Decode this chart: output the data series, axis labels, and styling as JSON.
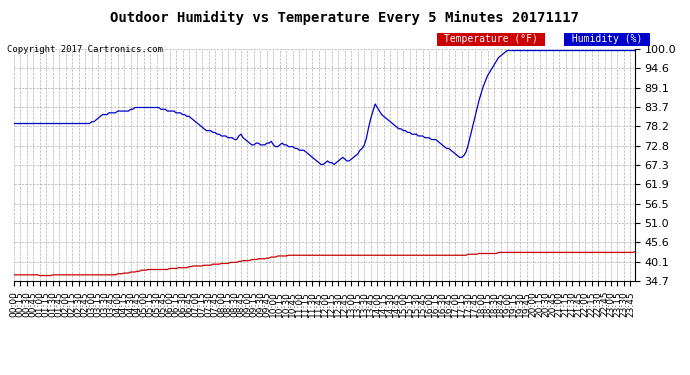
{
  "title": "Outdoor Humidity vs Temperature Every 5 Minutes 20171117",
  "copyright": "Copyright 2017 Cartronics.com",
  "background_color": "#ffffff",
  "plot_bg_color": "#ffffff",
  "grid_color": "#b0b0b0",
  "temp_color": "#cc0000",
  "humidity_color": "#0000cc",
  "temp_label": "Temperature (°F)",
  "humidity_label": "Humidity (%)",
  "temp_label_bg": "#cc0000",
  "humidity_label_bg": "#0000cc",
  "ylim": [
    34.7,
    100.0
  ],
  "yticks": [
    34.7,
    40.1,
    45.6,
    51.0,
    56.5,
    61.9,
    67.3,
    72.8,
    78.2,
    83.7,
    89.1,
    94.6,
    100.0
  ],
  "humidity": [
    79.0,
    79.0,
    79.0,
    79.0,
    79.0,
    79.0,
    79.0,
    79.0,
    79.0,
    79.0,
    79.0,
    79.0,
    79.0,
    79.0,
    79.0,
    79.0,
    79.0,
    79.0,
    79.0,
    79.0,
    79.0,
    79.0,
    79.0,
    79.0,
    79.0,
    79.0,
    79.0,
    79.0,
    79.0,
    79.0,
    79.0,
    79.0,
    79.0,
    79.0,
    79.0,
    79.0,
    79.5,
    79.5,
    80.0,
    80.5,
    81.0,
    81.5,
    81.5,
    81.5,
    82.0,
    82.0,
    82.0,
    82.0,
    82.5,
    82.5,
    82.5,
    82.5,
    82.5,
    82.5,
    83.0,
    83.0,
    83.5,
    83.5,
    83.5,
    83.5,
    83.5,
    83.5,
    83.5,
    83.5,
    83.5,
    83.5,
    83.5,
    83.5,
    83.0,
    83.0,
    83.0,
    82.5,
    82.5,
    82.5,
    82.5,
    82.0,
    82.0,
    82.0,
    81.5,
    81.5,
    81.0,
    81.0,
    80.5,
    80.0,
    79.5,
    79.0,
    78.5,
    78.0,
    77.5,
    77.0,
    77.0,
    77.0,
    76.5,
    76.5,
    76.0,
    76.0,
    75.5,
    75.5,
    75.5,
    75.0,
    75.0,
    75.0,
    74.5,
    74.5,
    75.5,
    76.0,
    75.0,
    74.5,
    74.0,
    73.5,
    73.0,
    73.0,
    73.5,
    73.5,
    73.0,
    73.0,
    73.0,
    73.5,
    73.5,
    74.0,
    73.0,
    72.5,
    72.5,
    73.0,
    73.5,
    73.0,
    73.0,
    72.5,
    72.5,
    72.5,
    72.0,
    72.0,
    71.5,
    71.5,
    71.5,
    71.0,
    70.5,
    70.0,
    69.5,
    69.0,
    68.5,
    68.0,
    67.5,
    67.5,
    68.0,
    68.5,
    68.0,
    68.0,
    67.5,
    68.0,
    68.5,
    69.0,
    69.5,
    69.0,
    68.5,
    68.5,
    69.0,
    69.5,
    70.0,
    70.5,
    71.5,
    72.0,
    73.0,
    75.0,
    78.0,
    80.5,
    82.5,
    84.5,
    83.5,
    82.5,
    81.5,
    81.0,
    80.5,
    80.0,
    79.5,
    79.0,
    78.5,
    78.0,
    77.5,
    77.5,
    77.0,
    77.0,
    76.5,
    76.5,
    76.0,
    76.0,
    76.0,
    75.5,
    75.5,
    75.5,
    75.0,
    75.0,
    75.0,
    74.5,
    74.5,
    74.5,
    74.0,
    73.5,
    73.0,
    72.5,
    72.0,
    72.0,
    71.5,
    71.0,
    70.5,
    70.0,
    69.5,
    69.5,
    70.0,
    71.0,
    73.0,
    75.5,
    78.0,
    80.5,
    83.0,
    85.5,
    87.5,
    89.5,
    91.0,
    92.5,
    93.5,
    94.5,
    95.5,
    96.5,
    97.5,
    98.0,
    98.5,
    99.0,
    99.5,
    99.5,
    99.5,
    99.5,
    99.5,
    99.5,
    99.5,
    99.5,
    99.5,
    99.5,
    99.5,
    99.5,
    99.5,
    99.5,
    99.5,
    99.5,
    99.5,
    99.5,
    99.5,
    99.5,
    99.5,
    99.5,
    99.5,
    99.5,
    99.5,
    99.5,
    99.5,
    99.5,
    99.5,
    99.5,
    99.5,
    99.5,
    99.5,
    99.5,
    99.5,
    99.5,
    99.5,
    99.5,
    99.5,
    99.5,
    99.5,
    99.5,
    99.5,
    99.5,
    99.5,
    99.5,
    99.5,
    99.5,
    99.5,
    99.5,
    99.5,
    99.5,
    99.5,
    99.5,
    99.5,
    99.5,
    99.5,
    99.5,
    99.5,
    99.5
  ],
  "temperature": [
    36.5,
    36.5,
    36.5,
    36.5,
    36.5,
    36.5,
    36.5,
    36.5,
    36.5,
    36.5,
    36.5,
    36.5,
    36.3,
    36.3,
    36.3,
    36.3,
    36.3,
    36.3,
    36.5,
    36.5,
    36.5,
    36.5,
    36.5,
    36.5,
    36.5,
    36.5,
    36.5,
    36.5,
    36.5,
    36.5,
    36.5,
    36.5,
    36.5,
    36.5,
    36.5,
    36.5,
    36.5,
    36.5,
    36.5,
    36.5,
    36.5,
    36.5,
    36.5,
    36.5,
    36.5,
    36.5,
    36.5,
    36.5,
    36.8,
    36.8,
    36.8,
    37.0,
    37.0,
    37.0,
    37.3,
    37.3,
    37.3,
    37.5,
    37.5,
    37.8,
    37.8,
    37.8,
    38.0,
    38.0,
    38.0,
    38.0,
    38.0,
    38.0,
    38.0,
    38.0,
    38.0,
    38.0,
    38.3,
    38.3,
    38.3,
    38.3,
    38.5,
    38.5,
    38.5,
    38.5,
    38.5,
    38.8,
    38.8,
    39.0,
    39.0,
    39.0,
    39.0,
    39.0,
    39.2,
    39.2,
    39.2,
    39.2,
    39.5,
    39.5,
    39.5,
    39.5,
    39.7,
    39.7,
    39.7,
    39.7,
    40.0,
    40.0,
    40.0,
    40.0,
    40.3,
    40.3,
    40.5,
    40.5,
    40.5,
    40.5,
    40.8,
    40.8,
    40.8,
    41.0,
    41.0,
    41.0,
    41.0,
    41.2,
    41.2,
    41.5,
    41.5,
    41.5,
    41.8,
    41.8,
    41.8,
    41.8,
    41.8,
    42.0,
    42.0,
    42.0,
    42.0,
    42.0,
    42.0,
    42.0,
    42.0,
    42.0,
    42.0,
    42.0,
    42.0,
    42.0,
    42.0,
    42.0,
    42.0,
    42.0,
    42.0,
    42.0,
    42.0,
    42.0,
    42.0,
    42.0,
    42.0,
    42.0,
    42.0,
    42.0,
    42.0,
    42.0,
    42.0,
    42.0,
    42.0,
    42.0,
    42.0,
    42.0,
    42.0,
    42.0,
    42.0,
    42.0,
    42.0,
    42.0,
    42.0,
    42.0,
    42.0,
    42.0,
    42.0,
    42.0,
    42.0,
    42.0,
    42.0,
    42.0,
    42.0,
    42.0,
    42.0,
    42.0,
    42.0,
    42.0,
    42.0,
    42.0,
    42.0,
    42.0,
    42.0,
    42.0,
    42.0,
    42.0,
    42.0,
    42.0,
    42.0,
    42.0,
    42.0,
    42.0,
    42.0,
    42.0,
    42.0,
    42.0,
    42.0,
    42.0,
    42.0,
    42.0,
    42.0,
    42.0,
    42.0,
    42.0,
    42.3,
    42.3,
    42.3,
    42.3,
    42.3,
    42.5,
    42.5,
    42.5,
    42.5,
    42.5,
    42.5,
    42.5,
    42.5,
    42.5,
    42.8,
    42.8,
    42.8,
    42.8,
    42.8,
    42.8,
    42.8,
    42.8,
    42.8,
    42.8,
    42.8,
    42.8,
    42.8,
    42.8,
    42.8,
    42.8,
    42.8,
    42.8,
    42.8,
    42.8,
    42.8,
    42.8,
    42.8,
    42.8,
    42.8,
    42.8,
    42.8,
    42.8,
    42.8,
    42.8,
    42.8,
    42.8,
    42.8,
    42.8,
    42.8,
    42.8,
    42.8,
    42.8,
    42.8,
    42.8,
    42.8,
    42.8,
    42.8,
    42.8,
    42.8,
    42.8,
    42.8,
    42.8,
    42.8,
    42.8,
    42.8,
    42.8,
    42.8,
    42.8,
    42.8,
    42.8,
    42.8,
    42.8,
    42.8,
    42.8,
    42.8,
    42.8,
    42.8,
    43.0
  ],
  "xtick_every": 3,
  "title_fontsize": 10,
  "tick_fontsize": 6.5,
  "ytick_fontsize": 8
}
